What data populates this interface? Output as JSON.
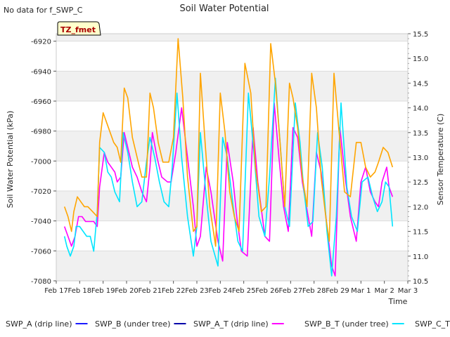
{
  "chart_data": {
    "type": "line",
    "title": "Soil Water Potential",
    "note": "No data for f_SWP_C",
    "tz_label": "TZ_fmet",
    "xlabel": "Time",
    "ylabel_left": "Soil Water Potential (kPa)",
    "ylabel_right": "Sensor Temperature (C)",
    "x_ticks": [
      "Feb 17",
      "Feb 18",
      "Feb 19",
      "Feb 20",
      "Feb 21",
      "Feb 22",
      "Feb 23",
      "Feb 24",
      "Feb 25",
      "Feb 26",
      "Feb 27",
      "Feb 28",
      "Feb 29",
      "Mar 1",
      "Mar 2",
      "Mar 3"
    ],
    "xlim": [
      0,
      15
    ],
    "ylim_left": [
      -7080,
      -6915
    ],
    "yticks_left": [
      -6920,
      -6940,
      -6960,
      -6980,
      -7000,
      -7020,
      -7040,
      -7060,
      -7080
    ],
    "ylim_right": [
      10.5,
      15.5
    ],
    "yticks_right": [
      15.5,
      15.0,
      14.5,
      14.0,
      13.5,
      13.0,
      12.5,
      12.0,
      11.5,
      11.0,
      10.5
    ],
    "grid": true,
    "legend_position": "bottom",
    "series": [
      {
        "name": "SWP_A (drip line)",
        "color": "#1a1aff",
        "axis": "left",
        "x": [],
        "y": []
      },
      {
        "name": "SWP_B (under tree)",
        "color": "#0000aa",
        "axis": "left",
        "x": [],
        "y": []
      },
      {
        "name": "SWP_A_T (drip line)",
        "color": "#ff00ff",
        "axis": "right",
        "x": [
          0.35,
          0.5,
          0.65,
          0.8,
          0.95,
          1.1,
          1.25,
          1.4,
          1.6,
          1.75,
          1.85,
          2.05,
          2.2,
          2.35,
          2.5,
          2.6,
          2.75,
          2.9,
          3.05,
          3.25,
          3.45,
          3.65,
          3.85,
          4.0,
          4.1,
          4.3,
          4.5,
          4.75,
          4.9,
          5.1,
          5.35,
          5.6,
          5.85,
          6.0,
          6.15,
          6.4,
          6.6,
          6.9,
          7.1,
          7.3,
          7.55,
          7.7,
          7.9,
          8.15,
          8.4,
          8.6,
          8.9,
          9.1,
          9.3,
          9.5,
          9.7,
          9.9,
          10.1,
          10.3,
          10.5,
          10.75,
          10.9,
          11.1,
          11.3,
          11.55,
          11.75,
          11.9,
          12.1,
          12.35,
          12.55,
          12.8,
          13.0,
          13.2,
          13.4,
          13.6,
          13.75,
          13.9,
          14.1,
          14.2,
          14.35
        ],
        "y": [
          11.6,
          11.4,
          11.2,
          11.4,
          11.8,
          11.8,
          11.7,
          11.7,
          11.7,
          11.6,
          12.4,
          13.1,
          12.9,
          12.8,
          12.7,
          12.5,
          12.6,
          13.5,
          13.2,
          12.8,
          12.6,
          12.3,
          12.1,
          12.8,
          13.5,
          13.0,
          12.6,
          12.5,
          12.5,
          13.1,
          14.0,
          13.0,
          12.0,
          11.2,
          11.4,
          12.8,
          12.3,
          11.3,
          10.9,
          13.3,
          12.5,
          11.8,
          11.1,
          11.0,
          13.6,
          12.5,
          11.4,
          11.3,
          14.1,
          13.0,
          12.0,
          11.5,
          13.6,
          13.4,
          12.5,
          11.8,
          11.4,
          13.1,
          12.7,
          11.6,
          10.8,
          10.6,
          13.6,
          12.5,
          11.8,
          11.3,
          12.5,
          12.8,
          12.3,
          12.1,
          12.0,
          12.5,
          12.8,
          12.4,
          12.2
        ]
      },
      {
        "name": "SWP_B_T (under tree)",
        "color": "#00e5ff",
        "axis": "right",
        "x": [
          0.35,
          0.45,
          0.6,
          0.75,
          0.85,
          1.0,
          1.15,
          1.3,
          1.45,
          1.6,
          1.75,
          1.85,
          2.05,
          2.2,
          2.35,
          2.5,
          2.7,
          2.85,
          3.05,
          3.25,
          3.45,
          3.65,
          3.85,
          4.0,
          4.2,
          4.4,
          4.6,
          4.8,
          4.95,
          5.15,
          5.35,
          5.6,
          5.85,
          6.0,
          6.15,
          6.4,
          6.6,
          6.9,
          7.1,
          7.3,
          7.55,
          7.75,
          7.95,
          8.2,
          8.45,
          8.65,
          8.9,
          9.1,
          9.35,
          9.55,
          9.75,
          9.95,
          10.2,
          10.4,
          10.55,
          10.75,
          10.95,
          11.15,
          11.35,
          11.55,
          11.75,
          11.95,
          12.15,
          12.4,
          12.6,
          12.85,
          13.05,
          13.3,
          13.5,
          13.7,
          13.9,
          14.05,
          14.2,
          14.35
        ],
        "y": [
          11.4,
          11.2,
          11.0,
          11.2,
          11.6,
          11.6,
          11.5,
          11.4,
          11.4,
          11.1,
          11.9,
          13.2,
          13.1,
          12.7,
          12.6,
          12.3,
          12.1,
          13.5,
          13.1,
          12.5,
          12.0,
          12.1,
          12.9,
          13.4,
          13.0,
          12.5,
          12.1,
          12.0,
          12.8,
          14.3,
          13.0,
          11.8,
          11.0,
          11.6,
          13.5,
          12.2,
          11.3,
          10.8,
          13.4,
          13.0,
          12.0,
          11.3,
          11.1,
          14.3,
          13.0,
          11.8,
          11.4,
          12.6,
          14.6,
          13.3,
          12.0,
          11.6,
          14.1,
          13.3,
          12.4,
          11.6,
          11.7,
          13.5,
          12.8,
          11.5,
          10.6,
          11.8,
          14.1,
          12.4,
          11.8,
          11.5,
          12.5,
          12.6,
          12.2,
          11.9,
          12.1,
          12.5,
          12.4,
          11.6
        ]
      },
      {
        "name": "SWP_C_T (open)",
        "color": "#ffa500",
        "axis": "right",
        "x": [
          0.35,
          0.5,
          0.65,
          0.75,
          0.9,
          1.05,
          1.2,
          1.35,
          1.55,
          1.75,
          1.85,
          2.0,
          2.15,
          2.3,
          2.45,
          2.6,
          2.75,
          2.9,
          3.05,
          3.25,
          3.45,
          3.65,
          3.85,
          4.0,
          4.15,
          4.35,
          4.55,
          4.8,
          5.0,
          5.2,
          5.4,
          5.6,
          5.85,
          6.0,
          6.15,
          6.35,
          6.55,
          6.8,
          7.0,
          7.2,
          7.4,
          7.6,
          7.8,
          8.05,
          8.3,
          8.5,
          8.75,
          8.95,
          9.15,
          9.35,
          9.55,
          9.75,
          9.95,
          10.1,
          10.3,
          10.5,
          10.7,
          10.9,
          11.1,
          11.3,
          11.5,
          11.65,
          11.85,
          12.05,
          12.3,
          12.55,
          12.8,
          13.0,
          13.2,
          13.4,
          13.6,
          13.75,
          13.95,
          14.15,
          14.35
        ],
        "y": [
          12.0,
          11.8,
          11.5,
          11.9,
          12.2,
          12.1,
          12.0,
          12.0,
          11.9,
          11.8,
          13.3,
          13.9,
          13.7,
          13.5,
          13.3,
          13.2,
          12.9,
          14.4,
          14.2,
          13.4,
          13.0,
          12.6,
          12.6,
          14.3,
          14.0,
          13.3,
          12.9,
          12.9,
          13.4,
          15.4,
          14.2,
          12.6,
          11.5,
          11.6,
          14.7,
          13.3,
          12.0,
          11.2,
          14.3,
          13.5,
          12.3,
          11.8,
          11.5,
          14.9,
          14.3,
          12.8,
          11.9,
          12.0,
          15.3,
          14.5,
          13.3,
          12.0,
          14.5,
          14.2,
          13.6,
          12.6,
          12.0,
          14.7,
          14.0,
          12.6,
          11.8,
          11.3,
          14.7,
          13.6,
          12.3,
          12.2,
          13.3,
          13.3,
          12.8,
          12.6,
          12.7,
          12.9,
          13.2,
          13.1,
          12.8
        ]
      }
    ]
  }
}
